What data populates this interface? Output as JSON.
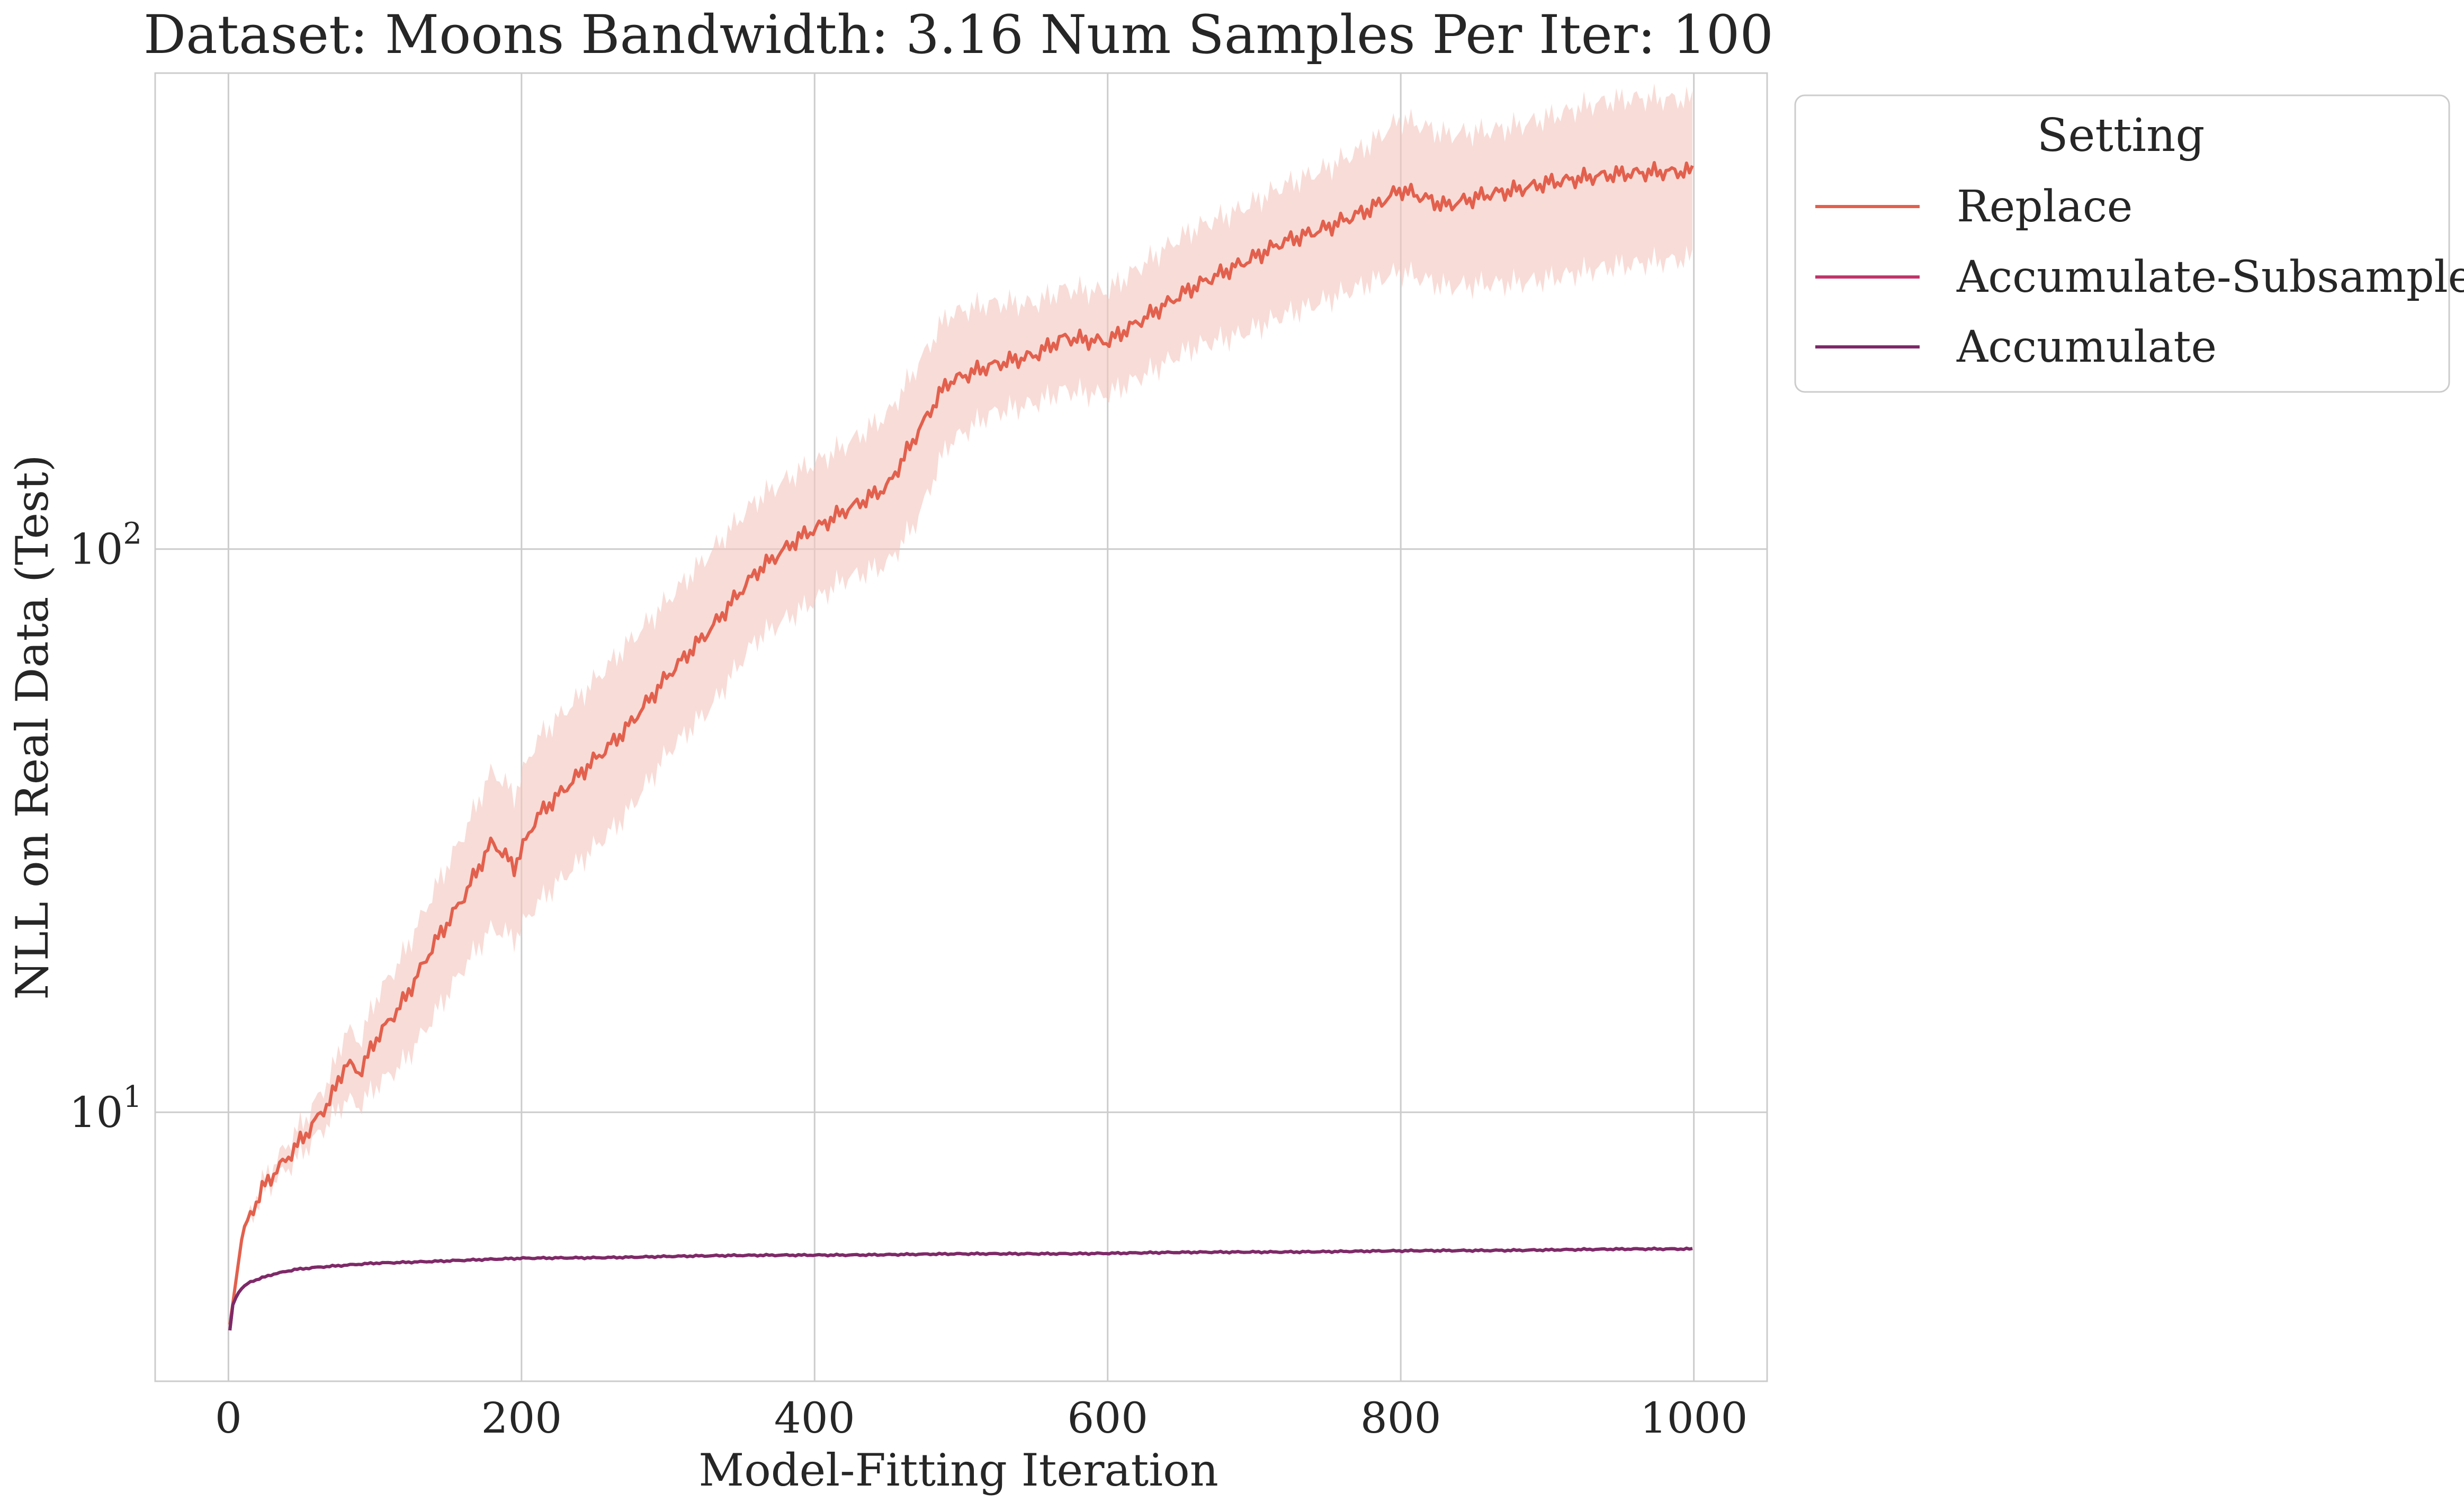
{
  "chart_data": {
    "type": "line",
    "title": "Dataset: Moons Bandwidth: 3.16 Num Samples Per Iter: 100",
    "xlabel": "Model-Fitting Iteration",
    "ylabel": "NLL on Real Data (Test)",
    "xlim": [
      -50,
      1050
    ],
    "ylim": [
      3.33,
      700
    ],
    "yscale": "log",
    "grid": true,
    "x_ticks": [
      0,
      200,
      400,
      600,
      800,
      1000
    ],
    "x_tick_labels": [
      "0",
      "200",
      "400",
      "600",
      "800",
      "1000"
    ],
    "y_ticks": [
      10,
      100
    ],
    "y_tick_labels": [
      {
        "base": "10",
        "exp": "1"
      },
      {
        "base": "10",
        "exp": "2"
      }
    ],
    "legend": {
      "title": "Setting",
      "placement": "outside-top-right",
      "entries": [
        "Replace",
        "Accumulate-Subsample",
        "Accumulate"
      ]
    },
    "series": [
      {
        "name": "Replace",
        "color": "#e2604d",
        "band_color": "#f4c4bc",
        "x": [
          1,
          10,
          25,
          40,
          55,
          70,
          80,
          90,
          100,
          120,
          140,
          160,
          180,
          195,
          210,
          240,
          270,
          300,
          330,
          360,
          390,
          420,
          450,
          470,
          490,
          520,
          550,
          570,
          600,
          630,
          660,
          690,
          720,
          750,
          780,
          800,
          830,
          860,
          900,
          930,
          960,
          1000
        ],
        "values": [
          4.2,
          6.2,
          7.4,
          8.2,
          9.2,
          10.5,
          12.2,
          11.8,
          13.5,
          16,
          20,
          24,
          30,
          27,
          33,
          40,
          48,
          60,
          72,
          90,
          105,
          118,
          130,
          160,
          195,
          210,
          222,
          240,
          235,
          260,
          290,
          320,
          355,
          375,
          400,
          430,
          405,
          430,
          450,
          455,
          460,
          470
        ],
        "lower": [
          4.2,
          6.1,
          7.2,
          7.8,
          8.6,
          9.6,
          10.5,
          10.3,
          11.2,
          12.5,
          15,
          18,
          21,
          20,
          23,
          28,
          34,
          44,
          52,
          68,
          78,
          90,
          95,
          112,
          150,
          172,
          183,
          195,
          190,
          205,
          225,
          240,
          265,
          280,
          295,
          305,
          290,
          300,
          305,
          310,
          315,
          330
        ],
        "upper": [
          4.2,
          6.3,
          7.6,
          8.6,
          9.8,
          11.5,
          14,
          13.4,
          16,
          19.5,
          25,
          31,
          40,
          36,
          45,
          55,
          68,
          82,
          98,
          120,
          138,
          155,
          175,
          210,
          255,
          270,
          275,
          295,
          290,
          325,
          365,
          400,
          450,
          480,
          520,
          570,
          540,
          560,
          590,
          610,
          620,
          630
        ]
      },
      {
        "name": "Accumulate-Subsample",
        "color": "#c2346a",
        "x": [
          1,
          3,
          6,
          10,
          15,
          20,
          30,
          45,
          60,
          80,
          100,
          150,
          200,
          250,
          300,
          400,
          500,
          600,
          700,
          800,
          900,
          1000
        ],
        "values": [
          4.1,
          4.55,
          4.75,
          4.9,
          5.0,
          5.05,
          5.15,
          5.25,
          5.3,
          5.35,
          5.4,
          5.45,
          5.5,
          5.52,
          5.55,
          5.58,
          5.6,
          5.62,
          5.65,
          5.67,
          5.7,
          5.72
        ]
      },
      {
        "name": "Accumulate",
        "color": "#7d2a68",
        "x": [
          1,
          3,
          6,
          10,
          15,
          20,
          30,
          45,
          60,
          80,
          100,
          150,
          200,
          250,
          300,
          400,
          500,
          600,
          700,
          800,
          900,
          1000
        ],
        "values": [
          4.1,
          4.55,
          4.75,
          4.9,
          5.0,
          5.05,
          5.15,
          5.25,
          5.3,
          5.35,
          5.4,
          5.45,
          5.5,
          5.52,
          5.55,
          5.58,
          5.6,
          5.62,
          5.65,
          5.67,
          5.7,
          5.72
        ]
      }
    ]
  }
}
